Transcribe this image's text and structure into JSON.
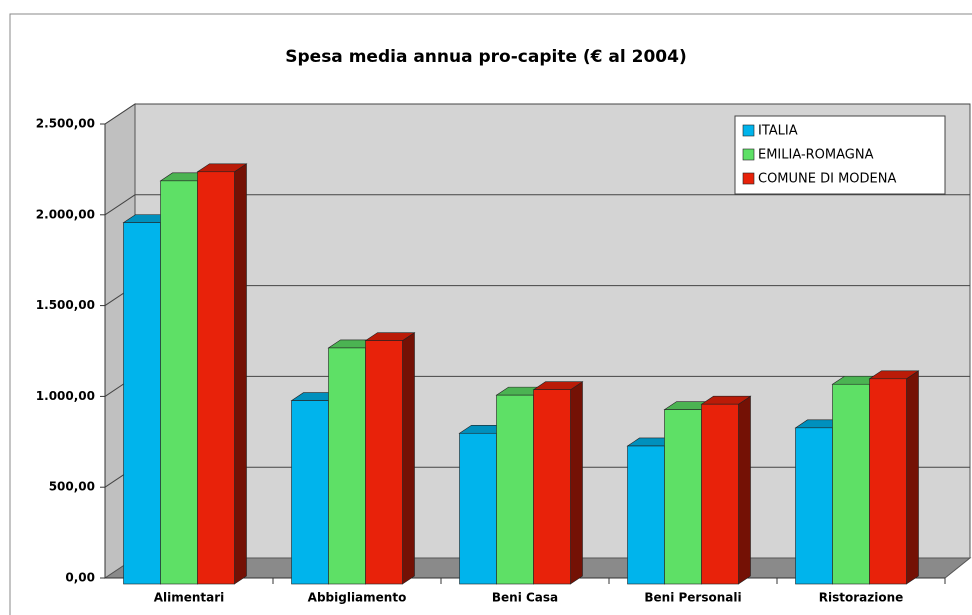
{
  "chart_data": {
    "type": "bar3d",
    "title": "Spesa media annua pro-capite (€ al 2004)",
    "categories": [
      "Alimentari",
      "Abbigliamento",
      "Beni Casa",
      "Beni Personali",
      "Ristorazione"
    ],
    "series": [
      {
        "name": "ITALIA",
        "color": "#00b4ec",
        "values": [
          1990,
          1010,
          830,
          760,
          860
        ]
      },
      {
        "name": "EMILIA-ROMAGNA",
        "color": "#5ee066",
        "values": [
          2220,
          1300,
          1040,
          960,
          1100
        ]
      },
      {
        "name": "COMUNE DI MODENA",
        "color": "#e8220a",
        "values": [
          2270,
          1340,
          1070,
          990,
          1130
        ]
      }
    ],
    "ylim": [
      0,
      2500
    ],
    "yticks": [
      {
        "value": 0,
        "label": "0,00"
      },
      {
        "value": 500,
        "label": "500,00"
      },
      {
        "value": 1000,
        "label": "1.000,00"
      },
      {
        "value": 1500,
        "label": "1.500,00"
      },
      {
        "value": 2000,
        "label": "2.000,00"
      },
      {
        "value": 2500,
        "label": "2.500,00"
      }
    ],
    "grid": true,
    "legend": "upper right"
  }
}
